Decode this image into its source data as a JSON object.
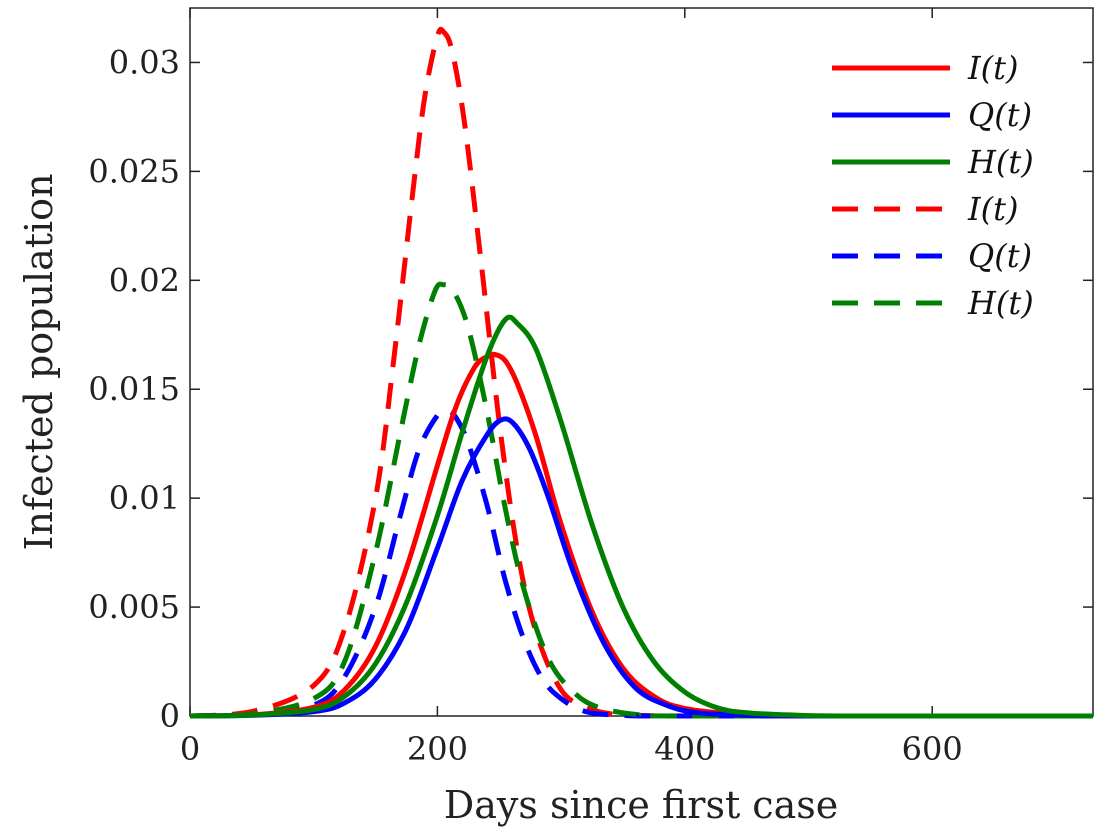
{
  "chart_data": {
    "type": "line",
    "title": "",
    "xlabel": "Days since first case",
    "ylabel": "Infected population",
    "xlim": [
      0,
      730
    ],
    "ylim": [
      0,
      0.0325
    ],
    "xticks": [
      0,
      200,
      400,
      600
    ],
    "xtick_labels": [
      "0",
      "200",
      "400",
      "600"
    ],
    "yticks": [
      0,
      0.005,
      0.01,
      0.015,
      0.02,
      0.025,
      0.03
    ],
    "ytick_labels": [
      "0",
      "0.005",
      "0.01",
      "0.015",
      "0.02",
      "0.025",
      "0.03"
    ],
    "grid": false,
    "legend_position": "top-right",
    "series": [
      {
        "name": "I(t)",
        "color": "#ff0000",
        "style": "solid",
        "x": [
          0,
          50,
          100,
          125,
          150,
          175,
          200,
          215,
          230,
          240,
          246,
          255,
          265,
          280,
          300,
          325,
          350,
          375,
          400,
          450,
          500,
          550,
          600,
          730
        ],
        "y": [
          0,
          5e-05,
          0.0004,
          0.0012,
          0.0032,
          0.0068,
          0.0115,
          0.0142,
          0.016,
          0.0165,
          0.0166,
          0.0163,
          0.0152,
          0.0128,
          0.0088,
          0.0048,
          0.0022,
          0.0009,
          0.00035,
          5e-05,
          0,
          0,
          0,
          0
        ]
      },
      {
        "name": "Q(t)",
        "color": "#0000ff",
        "style": "solid",
        "x": [
          0,
          50,
          100,
          125,
          150,
          175,
          200,
          220,
          240,
          252,
          262,
          275,
          290,
          310,
          335,
          360,
          385,
          410,
          450,
          500,
          600,
          730
        ],
        "y": [
          0,
          3e-05,
          0.0002,
          0.0006,
          0.0017,
          0.004,
          0.0077,
          0.0108,
          0.0129,
          0.0136,
          0.0134,
          0.0122,
          0.01,
          0.0066,
          0.0033,
          0.0013,
          0.0005,
          0.00015,
          3e-05,
          0,
          0,
          0
        ]
      },
      {
        "name": "H(t)",
        "color": "#008000",
        "style": "solid",
        "x": [
          0,
          50,
          100,
          125,
          150,
          175,
          200,
          220,
          240,
          255,
          265,
          280,
          300,
          325,
          350,
          375,
          400,
          425,
          450,
          500,
          550,
          730
        ],
        "y": [
          0,
          4e-05,
          0.0003,
          0.0009,
          0.0024,
          0.0052,
          0.0092,
          0.013,
          0.0165,
          0.0182,
          0.018,
          0.0168,
          0.0135,
          0.0088,
          0.005,
          0.0025,
          0.0011,
          0.0004,
          0.00015,
          2e-05,
          0,
          0
        ]
      },
      {
        "name": "I(t)",
        "color": "#ff0000",
        "style": "dashed",
        "x": [
          0,
          50,
          100,
          125,
          150,
          165,
          180,
          190,
          200,
          205,
          212,
          222,
          235,
          250,
          265,
          280,
          300,
          320,
          340,
          360,
          400,
          450,
          730
        ],
        "y": [
          0,
          0.0002,
          0.0014,
          0.004,
          0.01,
          0.0165,
          0.024,
          0.0285,
          0.0312,
          0.0314,
          0.0305,
          0.0272,
          0.021,
          0.0135,
          0.0075,
          0.0038,
          0.0012,
          0.0004,
          0.0001,
          3e-05,
          0,
          0,
          0
        ]
      },
      {
        "name": "Q(t)",
        "color": "#0000ff",
        "style": "dashed",
        "x": [
          0,
          50,
          100,
          125,
          150,
          170,
          185,
          200,
          208,
          215,
          225,
          240,
          255,
          270,
          285,
          300,
          320,
          350,
          400,
          730
        ],
        "y": [
          0,
          5e-05,
          0.0005,
          0.0018,
          0.005,
          0.0092,
          0.0122,
          0.0138,
          0.014,
          0.0137,
          0.0125,
          0.0097,
          0.0062,
          0.0035,
          0.0017,
          0.0008,
          0.0002,
          3e-05,
          0,
          0
        ]
      },
      {
        "name": "H(t)",
        "color": "#008000",
        "style": "dashed",
        "x": [
          0,
          50,
          100,
          125,
          150,
          170,
          185,
          198,
          205,
          213,
          225,
          240,
          255,
          270,
          290,
          310,
          330,
          360,
          400,
          730
        ],
        "y": [
          0,
          0.0001,
          0.0008,
          0.0025,
          0.0075,
          0.013,
          0.017,
          0.0195,
          0.0198,
          0.0195,
          0.0178,
          0.014,
          0.0095,
          0.0058,
          0.0026,
          0.0011,
          0.0004,
          8e-05,
          0,
          0
        ]
      }
    ]
  }
}
